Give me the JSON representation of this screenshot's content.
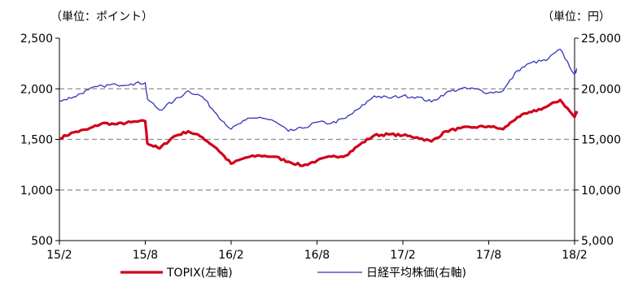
{
  "chart_data": {
    "type": "line",
    "left_unit_label": "（単位：ポイント）",
    "right_unit_label": "（単位：円）",
    "x_ticks": [
      "15/2",
      "15/8",
      "16/2",
      "16/8",
      "17/2",
      "17/8",
      "18/2"
    ],
    "y_left_ticks": [
      "500",
      "1,000",
      "1,500",
      "2,000",
      "2,500"
    ],
    "y_right_ticks": [
      "5,000",
      "10,000",
      "15,000",
      "20,000",
      "25,000"
    ],
    "y_left_range": [
      500,
      2500
    ],
    "y_right_range": [
      5000,
      25000
    ],
    "grid": "dashed horizontal at 1,000 / 1,500 / 2,000",
    "legend_position": "bottom-center",
    "series": [
      {
        "name": "TOPIX(左軸)",
        "axis": "left",
        "color": "#d0021b",
        "points": [
          [
            "15/2",
            1510
          ],
          [
            "15/3",
            1570
          ],
          [
            "15/4",
            1600
          ],
          [
            "15/5",
            1660
          ],
          [
            "15/6",
            1650
          ],
          [
            "15/7",
            1670
          ],
          [
            "15/8",
            1680
          ],
          [
            "15/8",
            1460
          ],
          [
            "15/9",
            1410
          ],
          [
            "15/10",
            1530
          ],
          [
            "15/11",
            1580
          ],
          [
            "15/12",
            1520
          ],
          [
            "16/1",
            1410
          ],
          [
            "16/2",
            1260
          ],
          [
            "16/3",
            1320
          ],
          [
            "16/4",
            1340
          ],
          [
            "16/5",
            1330
          ],
          [
            "16/6",
            1280
          ],
          [
            "16/7",
            1240
          ],
          [
            "16/8",
            1290
          ],
          [
            "16/9",
            1330
          ],
          [
            "16/10",
            1340
          ],
          [
            "16/11",
            1450
          ],
          [
            "16/12",
            1540
          ],
          [
            "17/1",
            1550
          ],
          [
            "17/2",
            1540
          ],
          [
            "17/3",
            1520
          ],
          [
            "17/4",
            1480
          ],
          [
            "17/5",
            1580
          ],
          [
            "17/6",
            1610
          ],
          [
            "17/7",
            1620
          ],
          [
            "17/8",
            1630
          ],
          [
            "17/9",
            1600
          ],
          [
            "17/10",
            1720
          ],
          [
            "17/11",
            1770
          ],
          [
            "17/12",
            1820
          ],
          [
            "18/1",
            1890
          ],
          [
            "18/2",
            1720
          ],
          [
            "18/2",
            1780
          ]
        ]
      },
      {
        "name": "日経平均株価(右軸)",
        "axis": "right",
        "color": "#3333bb",
        "points": [
          [
            "15/2",
            18800
          ],
          [
            "15/3",
            19200
          ],
          [
            "15/4",
            19900
          ],
          [
            "15/5",
            20300
          ],
          [
            "15/6",
            20400
          ],
          [
            "15/7",
            20500
          ],
          [
            "15/8",
            20600
          ],
          [
            "15/8",
            19000
          ],
          [
            "15/9",
            17900
          ],
          [
            "15/10",
            18800
          ],
          [
            "15/11",
            19800
          ],
          [
            "15/12",
            19200
          ],
          [
            "16/1",
            17500
          ],
          [
            "16/2",
            16000
          ],
          [
            "16/3",
            16900
          ],
          [
            "16/4",
            17200
          ],
          [
            "16/5",
            16800
          ],
          [
            "16/6",
            15800
          ],
          [
            "16/7",
            16100
          ],
          [
            "16/8",
            16700
          ],
          [
            "16/9",
            16600
          ],
          [
            "16/10",
            17100
          ],
          [
            "16/11",
            18100
          ],
          [
            "16/12",
            19300
          ],
          [
            "17/1",
            19100
          ],
          [
            "17/2",
            19300
          ],
          [
            "17/3",
            19200
          ],
          [
            "17/4",
            18700
          ],
          [
            "17/5",
            19600
          ],
          [
            "17/6",
            20000
          ],
          [
            "17/7",
            20000
          ],
          [
            "17/8",
            19600
          ],
          [
            "17/9",
            19800
          ],
          [
            "17/10",
            21800
          ],
          [
            "17/11",
            22600
          ],
          [
            "17/12",
            22800
          ],
          [
            "18/1",
            23900
          ],
          [
            "18/2",
            21400
          ],
          [
            "18/2",
            22000
          ]
        ]
      }
    ]
  }
}
